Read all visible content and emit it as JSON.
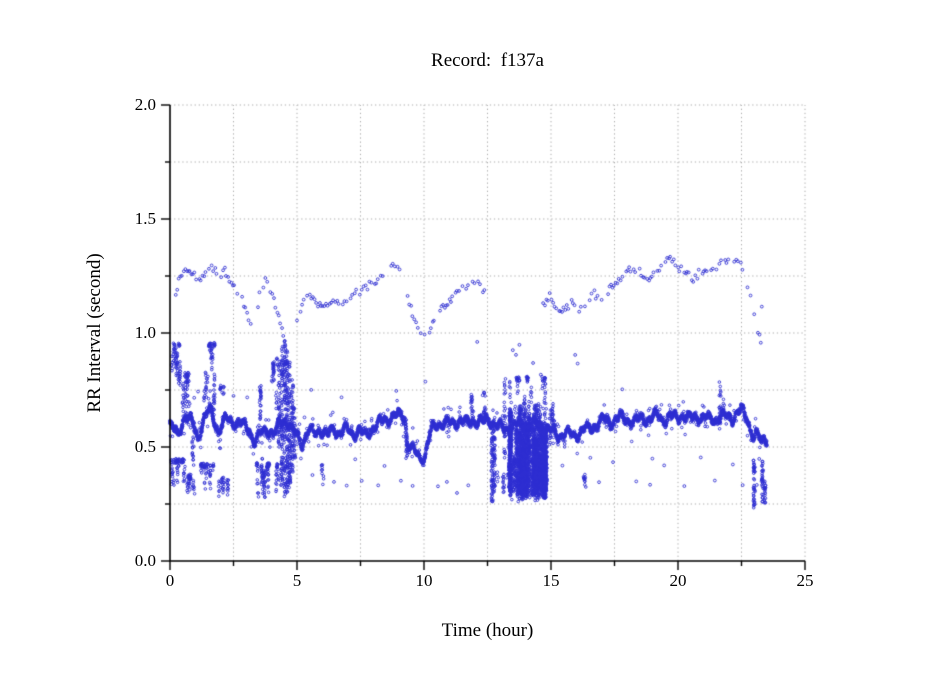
{
  "chart": {
    "title": "Record:  f137a",
    "xlabel": "Time (hour)",
    "ylabel": "RR Interval (second)"
  },
  "chart_data": {
    "type": "scatter",
    "title": "Record:  f137a",
    "xlabel": "Time (hour)",
    "ylabel": "RR Interval (second)",
    "xlim": [
      0,
      25
    ],
    "ylim": [
      0.0,
      2.0
    ],
    "x_major_ticks": [
      0,
      5,
      10,
      15,
      20,
      25
    ],
    "x_tick_labels": [
      "0",
      "5",
      "10",
      "15",
      "20",
      "25"
    ],
    "x_minor_ticks": [
      2.5,
      7.5,
      12.5,
      17.5,
      22.5
    ],
    "y_major_ticks": [
      0.0,
      0.5,
      1.0,
      1.5,
      2.0
    ],
    "y_tick_labels": [
      "0.0",
      "0.5",
      "1.0",
      "1.5",
      "2.0"
    ],
    "y_minor_ticks": [
      0.25,
      0.75,
      1.25,
      1.75
    ],
    "grid": {
      "style": "dotted",
      "color": "#ababab",
      "x_step": 2.5,
      "y_step": 0.25
    },
    "legend": "none",
    "marker": {
      "shape": "open-circle",
      "radius_px": 1.3,
      "color": "#2d2dd2"
    },
    "data_x_extent": [
      0.0,
      23.5
    ],
    "description": "24-hour RR-interval tachogram. Dense beat-to-beat band near 0.6 s with episodic scatter near 1.0-1.35 s and 0.3-0.45 s, a dense noisy block from 13.3-14.9 h spanning 0.26-0.7 s, and vertical artifact streaks near 4.5, 12.7 and 23.3 h.",
    "generators": {
      "seed": 42,
      "band": {
        "keypoints": [
          [
            0,
            0.6
          ],
          [
            0.3,
            0.55
          ],
          [
            0.6,
            0.64
          ],
          [
            0.9,
            0.6
          ],
          [
            1.1,
            0.54
          ],
          [
            1.35,
            0.63
          ],
          [
            1.6,
            0.66
          ],
          [
            1.9,
            0.57
          ],
          [
            2.2,
            0.62
          ],
          [
            2.5,
            0.61
          ],
          [
            2.8,
            0.6
          ],
          [
            3.1,
            0.58
          ],
          [
            3.35,
            0.52
          ],
          [
            3.6,
            0.56
          ],
          [
            3.85,
            0.58
          ],
          [
            4.1,
            0.55
          ],
          [
            4.35,
            0.61
          ],
          [
            4.6,
            0.62
          ],
          [
            4.8,
            0.57
          ],
          [
            5.0,
            0.55
          ],
          [
            5.2,
            0.52
          ],
          [
            5.45,
            0.57
          ],
          [
            5.7,
            0.56
          ],
          [
            5.95,
            0.58
          ],
          [
            6.2,
            0.55
          ],
          [
            6.45,
            0.58
          ],
          [
            6.7,
            0.56
          ],
          [
            6.95,
            0.58
          ],
          [
            7.2,
            0.56
          ],
          [
            7.45,
            0.57
          ],
          [
            7.7,
            0.55
          ],
          [
            7.95,
            0.58
          ],
          [
            8.2,
            0.6
          ],
          [
            8.45,
            0.62
          ],
          [
            8.7,
            0.63
          ],
          [
            9.0,
            0.64
          ],
          [
            9.25,
            0.63
          ],
          [
            9.35,
            0.52
          ],
          [
            9.6,
            0.48
          ],
          [
            9.85,
            0.45
          ],
          [
            10.05,
            0.47
          ],
          [
            10.25,
            0.56
          ],
          [
            10.5,
            0.6
          ],
          [
            10.8,
            0.61
          ],
          [
            11.1,
            0.6
          ],
          [
            11.4,
            0.62
          ],
          [
            11.7,
            0.6
          ],
          [
            12.0,
            0.62
          ],
          [
            12.3,
            0.61
          ],
          [
            12.6,
            0.62
          ],
          [
            12.9,
            0.59
          ],
          [
            13.2,
            0.58
          ],
          [
            13.5,
            0.59
          ],
          [
            13.8,
            0.6
          ],
          [
            14.1,
            0.59
          ],
          [
            14.4,
            0.6
          ],
          [
            14.7,
            0.59
          ],
          [
            15.0,
            0.57
          ],
          [
            15.3,
            0.55
          ],
          [
            15.6,
            0.56
          ],
          [
            15.9,
            0.55
          ],
          [
            16.2,
            0.57
          ],
          [
            16.5,
            0.58
          ],
          [
            16.8,
            0.6
          ],
          [
            17.1,
            0.62
          ],
          [
            17.4,
            0.61
          ],
          [
            17.7,
            0.63
          ],
          [
            18.0,
            0.62
          ],
          [
            18.3,
            0.61
          ],
          [
            18.6,
            0.63
          ],
          [
            18.9,
            0.62
          ],
          [
            19.2,
            0.64
          ],
          [
            19.5,
            0.62
          ],
          [
            19.8,
            0.63
          ],
          [
            20.1,
            0.64
          ],
          [
            20.4,
            0.62
          ],
          [
            20.7,
            0.64
          ],
          [
            21.0,
            0.62
          ],
          [
            21.3,
            0.63
          ],
          [
            21.6,
            0.62
          ],
          [
            21.9,
            0.64
          ],
          [
            22.2,
            0.63
          ],
          [
            22.5,
            0.66
          ],
          [
            22.7,
            0.64
          ],
          [
            22.85,
            0.58
          ],
          [
            23.0,
            0.54
          ],
          [
            23.15,
            0.55
          ],
          [
            23.3,
            0.52
          ],
          [
            23.4,
            0.55
          ],
          [
            23.5,
            0.54
          ]
        ],
        "x_step": 0.009,
        "jitter_sd": 0.02,
        "outlier_prob": 0.05,
        "outlier_amp": 0.07
      },
      "block": {
        "x0": 13.35,
        "x1": 14.85,
        "y_floor": 0.26,
        "y_ceiling": 0.7,
        "columns": 75,
        "uniform_fill": 160
      },
      "streaks": [
        [
          4.3,
          0.5,
          0.88,
          50
        ],
        [
          4.42,
          0.35,
          0.95,
          70
        ],
        [
          4.52,
          0.28,
          0.97,
          90
        ],
        [
          4.62,
          0.3,
          0.95,
          90
        ],
        [
          4.72,
          0.32,
          0.88,
          70
        ],
        [
          4.82,
          0.38,
          0.8,
          50
        ],
        [
          4.9,
          0.45,
          0.68,
          30
        ],
        [
          3.55,
          0.62,
          0.78,
          25
        ],
        [
          3.62,
          0.3,
          0.45,
          20
        ],
        [
          3.72,
          0.28,
          0.4,
          20
        ],
        [
          0.9,
          0.42,
          0.55,
          15
        ],
        [
          12.68,
          0.26,
          0.62,
          60
        ],
        [
          12.76,
          0.3,
          0.66,
          50
        ],
        [
          13.18,
          0.45,
          0.8,
          35
        ],
        [
          11.88,
          0.6,
          0.73,
          18
        ],
        [
          12.38,
          0.6,
          0.74,
          18
        ],
        [
          21.65,
          0.6,
          0.79,
          20
        ],
        [
          23.0,
          0.22,
          0.45,
          40
        ],
        [
          23.32,
          0.26,
          0.45,
          30
        ],
        [
          23.42,
          0.25,
          0.35,
          20
        ],
        [
          9.32,
          0.45,
          0.55,
          18
        ]
      ],
      "clouds": [
        [
          0.05,
          0.4,
          0.76,
          0.95,
          70
        ],
        [
          0.5,
          0.85,
          0.6,
          0.82,
          60
        ],
        [
          1.35,
          1.78,
          0.62,
          0.95,
          80
        ],
        [
          1.95,
          2.25,
          0.68,
          0.76,
          12
        ],
        [
          0.05,
          0.6,
          0.32,
          0.44,
          70
        ],
        [
          0.6,
          0.95,
          0.29,
          0.37,
          40
        ],
        [
          1.15,
          1.85,
          0.32,
          0.42,
          60
        ],
        [
          1.9,
          2.3,
          0.29,
          0.36,
          35
        ],
        [
          3.4,
          3.95,
          0.27,
          0.42,
          55
        ],
        [
          4.15,
          4.5,
          0.3,
          0.42,
          30
        ],
        [
          3.9,
          4.25,
          0.62,
          0.88,
          35
        ],
        [
          13.35,
          14.85,
          0.66,
          0.8,
          70
        ],
        [
          12.9,
          13.3,
          0.29,
          0.44,
          18
        ],
        [
          14.85,
          15.15,
          0.5,
          0.68,
          40
        ],
        [
          5.9,
          6.15,
          0.3,
          0.42,
          10
        ],
        [
          16.2,
          16.5,
          0.3,
          0.37,
          12
        ]
      ],
      "upper_chains": [
        [
          [
            0.15,
            1.13
          ],
          [
            0.35,
            1.24
          ],
          [
            0.6,
            1.27
          ],
          [
            0.9,
            1.26
          ],
          [
            1.15,
            1.22
          ],
          [
            1.4,
            1.26
          ],
          [
            1.65,
            1.29
          ],
          [
            1.9,
            1.25
          ],
          [
            2.15,
            1.27
          ],
          [
            2.4,
            1.22
          ],
          [
            2.65,
            1.18
          ],
          [
            2.9,
            1.13
          ],
          [
            3.1,
            1.06
          ],
          [
            3.25,
            0.99
          ]
        ],
        [
          [
            3.45,
            1.13
          ],
          [
            3.6,
            1.2
          ],
          [
            3.75,
            1.23
          ],
          [
            3.95,
            1.18
          ],
          [
            4.15,
            1.12
          ],
          [
            4.35,
            1.05
          ],
          [
            4.5,
            0.97
          ]
        ],
        [
          [
            5.0,
            1.06
          ],
          [
            5.2,
            1.12
          ],
          [
            5.45,
            1.17
          ],
          [
            5.7,
            1.14
          ],
          [
            5.95,
            1.11
          ],
          [
            6.2,
            1.13
          ],
          [
            6.5,
            1.15
          ],
          [
            6.8,
            1.13
          ],
          [
            7.1,
            1.16
          ],
          [
            7.4,
            1.18
          ],
          [
            7.7,
            1.2
          ],
          [
            8.0,
            1.22
          ],
          [
            8.3,
            1.24
          ],
          [
            8.6,
            1.27
          ],
          [
            8.9,
            1.3
          ],
          [
            9.1,
            1.27
          ]
        ],
        [
          [
            9.35,
            1.15
          ],
          [
            9.55,
            1.08
          ],
          [
            9.75,
            1.02
          ],
          [
            9.95,
            0.97
          ],
          [
            10.15,
            1.0
          ],
          [
            10.4,
            1.05
          ],
          [
            10.7,
            1.1
          ],
          [
            11.0,
            1.14
          ],
          [
            11.3,
            1.17
          ],
          [
            11.6,
            1.2
          ],
          [
            11.9,
            1.23
          ],
          [
            12.2,
            1.21
          ],
          [
            12.45,
            1.17
          ]
        ],
        [
          [
            14.7,
            1.12
          ],
          [
            14.95,
            1.16
          ],
          [
            15.2,
            1.12
          ],
          [
            15.5,
            1.1
          ],
          [
            15.8,
            1.13
          ],
          [
            16.1,
            1.11
          ],
          [
            16.4,
            1.14
          ],
          [
            16.7,
            1.17
          ],
          [
            17.0,
            1.15
          ],
          [
            17.3,
            1.19
          ],
          [
            17.6,
            1.22
          ],
          [
            17.9,
            1.26
          ],
          [
            18.2,
            1.29
          ],
          [
            18.5,
            1.27
          ],
          [
            18.8,
            1.24
          ],
          [
            19.1,
            1.27
          ],
          [
            19.4,
            1.3
          ],
          [
            19.7,
            1.32
          ],
          [
            20.0,
            1.29
          ],
          [
            20.3,
            1.27
          ],
          [
            20.6,
            1.24
          ],
          [
            20.9,
            1.27
          ],
          [
            21.2,
            1.26
          ],
          [
            21.5,
            1.29
          ],
          [
            21.8,
            1.32
          ],
          [
            22.1,
            1.3
          ],
          [
            22.35,
            1.33
          ],
          [
            22.6,
            1.28
          ]
        ],
        [
          [
            22.7,
            1.22
          ],
          [
            22.85,
            1.15
          ],
          [
            23.0,
            1.08
          ],
          [
            23.15,
            1.0
          ],
          [
            23.3,
            0.95
          ]
        ],
        [
          [
            23.3,
            1.1
          ],
          [
            23.45,
            1.15
          ]
        ]
      ],
      "singles": [
        [
          0.95,
          0.72
        ],
        [
          1.1,
          0.74
        ],
        [
          2.05,
          0.74
        ],
        [
          2.5,
          0.72
        ],
        [
          3.05,
          0.72
        ],
        [
          5.3,
          0.63
        ],
        [
          5.55,
          0.75
        ],
        [
          5.15,
          0.45
        ],
        [
          5.6,
          0.38
        ],
        [
          6.45,
          0.35
        ],
        [
          6.95,
          0.33
        ],
        [
          7.55,
          0.35
        ],
        [
          7.3,
          0.45
        ],
        [
          8.45,
          0.42
        ],
        [
          8.2,
          0.33
        ],
        [
          9.1,
          0.35
        ],
        [
          9.55,
          0.33
        ],
        [
          10.55,
          0.33
        ],
        [
          10.9,
          0.35
        ],
        [
          11.3,
          0.3
        ],
        [
          11.75,
          0.33
        ],
        [
          12.1,
          0.96
        ],
        [
          12.3,
          0.73
        ],
        [
          13.5,
          0.92
        ],
        [
          13.62,
          0.9
        ],
        [
          13.75,
          0.95
        ],
        [
          14.3,
          0.87
        ],
        [
          14.6,
          0.82
        ],
        [
          15.45,
          0.42
        ],
        [
          15.95,
          0.9
        ],
        [
          16.05,
          0.87
        ],
        [
          16.55,
          0.45
        ],
        [
          16.9,
          0.35
        ],
        [
          17.45,
          0.43
        ],
        [
          17.8,
          0.75
        ],
        [
          18.35,
          0.35
        ],
        [
          18.9,
          0.33
        ],
        [
          19.0,
          0.45
        ],
        [
          19.45,
          0.42
        ],
        [
          20.25,
          0.33
        ],
        [
          20.9,
          0.45
        ],
        [
          21.45,
          0.35
        ],
        [
          22.15,
          0.42
        ],
        [
          22.55,
          0.33
        ],
        [
          23.1,
          0.33
        ],
        [
          23.2,
          0.45
        ],
        [
          10.05,
          0.79
        ],
        [
          8.9,
          0.75
        ],
        [
          6.75,
          0.72
        ]
      ]
    }
  },
  "colors": {
    "marker": "#2d2dd2",
    "grid": "#ababab",
    "axis": "#000000",
    "background": "#ffffff"
  }
}
